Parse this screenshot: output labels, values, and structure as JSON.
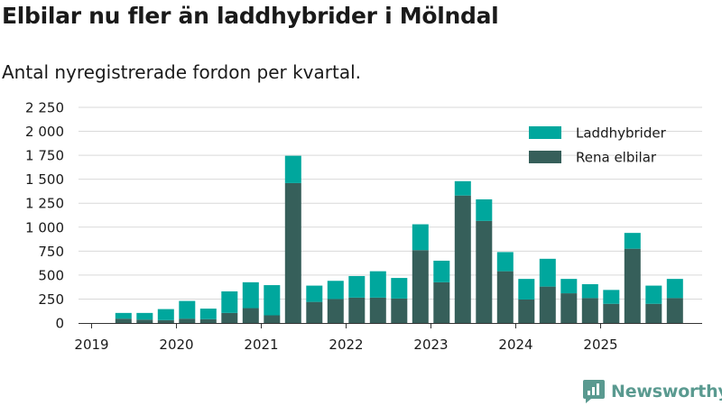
{
  "title": "Elbilar nu fler än laddhybrider i Mölndal",
  "subtitle": "Antal nyregistrerade fordon per kvartal.",
  "brand": "Newsworthy",
  "colors": {
    "laddhybrider": "#00a79d",
    "elbilar": "#365f5a",
    "grid": "#d9d9d9",
    "text": "#1a1a1a",
    "brand": "#5a9a90"
  },
  "icons": {
    "brand_logo": "newsworthy-logo-icon"
  },
  "chart_data": {
    "type": "bar",
    "stacked": true,
    "title": "Elbilar nu fler än laddhybrider i Mölndal",
    "subtitle": "Antal nyregistrerade fordon per kvartal.",
    "xlabel": "",
    "ylabel": "",
    "ylim": [
      0,
      2250
    ],
    "yticks": [
      0,
      250,
      500,
      750,
      1000,
      1250,
      1500,
      1750,
      2000,
      2250
    ],
    "ytick_labels": [
      "0",
      "250",
      "500",
      "750",
      "1 000",
      "1 250",
      "1 500",
      "1 750",
      "2 000",
      "2 250"
    ],
    "xtick_labels": [
      "2019",
      "2020",
      "2021",
      "2022",
      "2023",
      "2024",
      "2025"
    ],
    "grid": true,
    "legend_position": "top-right",
    "categories": [
      "2019Q1",
      "2019Q2",
      "2019Q3",
      "2019Q4",
      "2020Q1",
      "2020Q2",
      "2020Q3",
      "2020Q4",
      "2021Q1",
      "2021Q2",
      "2021Q3",
      "2021Q4",
      "2022Q1",
      "2022Q2",
      "2022Q3",
      "2022Q4",
      "2023Q1",
      "2023Q2",
      "2023Q3",
      "2023Q4",
      "2024Q1",
      "2024Q2",
      "2024Q3",
      "2024Q4",
      "2025Q1",
      "2025Q2",
      "2025Q3",
      "2025Q4"
    ],
    "series": [
      {
        "name": "Rena elbilar",
        "key": "elbilar",
        "values": [
          null,
          45,
          35,
          30,
          45,
          40,
          105,
          155,
          80,
          1460,
          220,
          250,
          265,
          265,
          255,
          760,
          425,
          1330,
          1065,
          540,
          245,
          380,
          310,
          260,
          200,
          775,
          200,
          260
        ]
      },
      {
        "name": "Laddhybrider",
        "key": "laddhybrider",
        "values": [
          null,
          60,
          70,
          115,
          185,
          110,
          225,
          270,
          315,
          285,
          170,
          190,
          225,
          275,
          215,
          270,
          225,
          150,
          225,
          200,
          215,
          290,
          150,
          145,
          145,
          165,
          190,
          200
        ]
      }
    ],
    "legend": [
      "Laddhybrider",
      "Rena elbilar"
    ]
  }
}
